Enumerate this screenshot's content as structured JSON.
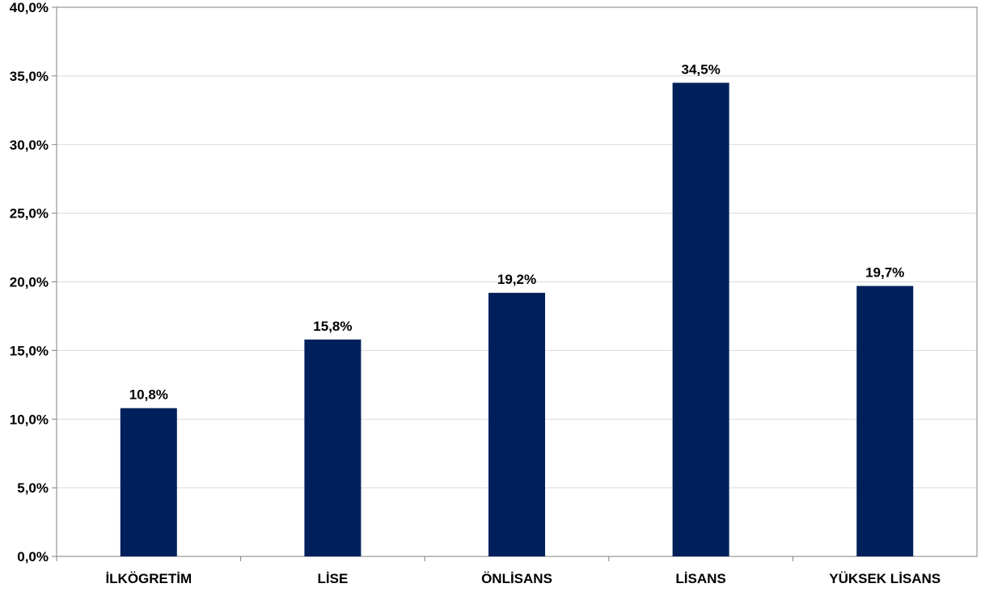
{
  "chart_data": {
    "type": "bar",
    "categories": [
      "İLKÖGRETİM",
      "LİSE",
      "ÖNLİSANS",
      "LİSANS",
      "YÜKSEK LİSANS"
    ],
    "values": [
      10.8,
      15.8,
      19.2,
      34.5,
      19.7
    ],
    "data_labels": [
      "10,8%",
      "15,8%",
      "19,2%",
      "34,5%",
      "19,7%"
    ],
    "y_ticks": [
      0,
      5,
      10,
      15,
      20,
      25,
      30,
      35,
      40
    ],
    "y_tick_labels": [
      "0,0%",
      "5,0%",
      "10,0%",
      "15,0%",
      "20,0%",
      "25,0%",
      "30,0%",
      "35,0%",
      "40,0%"
    ],
    "ylim": [
      0,
      40
    ],
    "grid": true,
    "legend": "none",
    "colors": {
      "bar": "#00205B",
      "grid": "#d9d9d9",
      "axis": "#808080"
    }
  }
}
